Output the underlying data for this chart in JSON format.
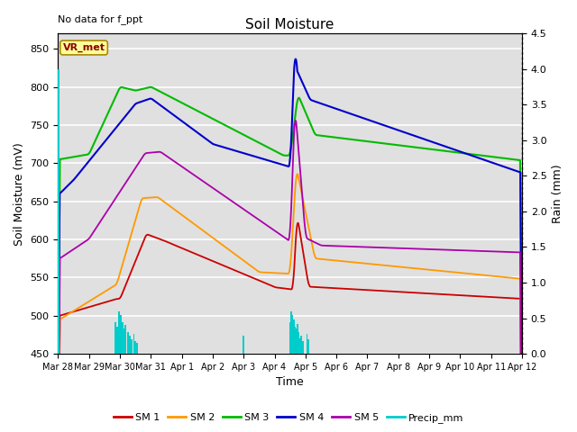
{
  "title": "Soil Moisture",
  "xlabel": "Time",
  "ylabel_left": "Soil Moisture (mV)",
  "ylabel_right": "Rain (mm)",
  "note": "No data for f_ppt",
  "station_label": "VR_met",
  "ylim_left": [
    450,
    870
  ],
  "ylim_right": [
    0.0,
    4.5
  ],
  "xtick_labels": [
    "Mar 28",
    "Mar 29",
    "Mar 30",
    "Mar 31",
    "Apr 1",
    "Apr 2",
    "Apr 3",
    "Apr 4",
    "Apr 5",
    "Apr 6",
    "Apr 7",
    "Apr 8",
    "Apr 9",
    "Apr 10",
    "Apr 11",
    "Apr 12"
  ],
  "background_color": "#e0e0e0",
  "grid_color": "white",
  "colors": {
    "SM1": "#cc0000",
    "SM2": "#ff9900",
    "SM3": "#00bb00",
    "SM4": "#0000cc",
    "SM5": "#aa00aa",
    "Precip": "#00cccc"
  },
  "legend_labels": [
    "SM 1",
    "SM 2",
    "SM 3",
    "SM 4",
    "SM 5",
    "Precip_mm"
  ]
}
